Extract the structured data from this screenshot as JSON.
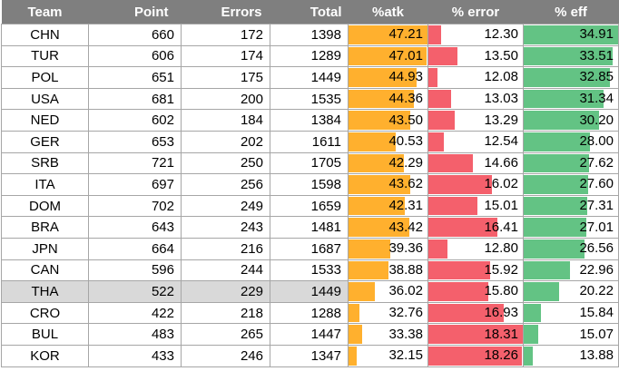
{
  "table": {
    "headers": [
      "Team",
      "Point",
      "Errors",
      "Total",
      "%atk",
      "% error",
      "% eff"
    ],
    "highlight_row": "THA",
    "bar_colors": {
      "atk": "#ffb02e",
      "error": "#f4606c",
      "eff": "#63c384"
    },
    "header_color": "#7f7f7f",
    "rows": [
      {
        "team": "CHN",
        "point": "660",
        "errors": "172",
        "total": "1398",
        "atk": "47.21",
        "error": "12.30",
        "eff": "34.91"
      },
      {
        "team": "TUR",
        "point": "606",
        "errors": "174",
        "total": "1289",
        "atk": "47.01",
        "error": "13.50",
        "eff": "33.51"
      },
      {
        "team": "POL",
        "point": "651",
        "errors": "175",
        "total": "1449",
        "atk": "44.93",
        "error": "12.08",
        "eff": "32.85"
      },
      {
        "team": "USA",
        "point": "681",
        "errors": "200",
        "total": "1535",
        "atk": "44.36",
        "error": "13.03",
        "eff": "31.34"
      },
      {
        "team": "NED",
        "point": "602",
        "errors": "184",
        "total": "1384",
        "atk": "43.50",
        "error": "13.29",
        "eff": "30.20"
      },
      {
        "team": "GER",
        "point": "653",
        "errors": "202",
        "total": "1611",
        "atk": "40.53",
        "error": "12.54",
        "eff": "28.00"
      },
      {
        "team": "SRB",
        "point": "721",
        "errors": "250",
        "total": "1705",
        "atk": "42.29",
        "error": "14.66",
        "eff": "27.62"
      },
      {
        "team": "ITA",
        "point": "697",
        "errors": "256",
        "total": "1598",
        "atk": "43.62",
        "error": "16.02",
        "eff": "27.60"
      },
      {
        "team": "DOM",
        "point": "702",
        "errors": "249",
        "total": "1659",
        "atk": "42.31",
        "error": "15.01",
        "eff": "27.31"
      },
      {
        "team": "BRA",
        "point": "643",
        "errors": "243",
        "total": "1481",
        "atk": "43.42",
        "error": "16.41",
        "eff": "27.01"
      },
      {
        "team": "JPN",
        "point": "664",
        "errors": "216",
        "total": "1687",
        "atk": "39.36",
        "error": "12.80",
        "eff": "26.56"
      },
      {
        "team": "CAN",
        "point": "596",
        "errors": "244",
        "total": "1533",
        "atk": "38.88",
        "error": "15.92",
        "eff": "22.96"
      },
      {
        "team": "THA",
        "point": "522",
        "errors": "229",
        "total": "1449",
        "atk": "36.02",
        "error": "15.80",
        "eff": "20.22"
      },
      {
        "team": "CRO",
        "point": "422",
        "errors": "218",
        "total": "1288",
        "atk": "32.76",
        "error": "16.93",
        "eff": "15.84"
      },
      {
        "team": "BUL",
        "point": "483",
        "errors": "265",
        "total": "1447",
        "atk": "33.38",
        "error": "18.31",
        "eff": "15.07"
      },
      {
        "team": "KOR",
        "point": "433",
        "errors": "246",
        "total": "1347",
        "atk": "32.15",
        "error": "18.26",
        "eff": "13.88"
      }
    ]
  }
}
